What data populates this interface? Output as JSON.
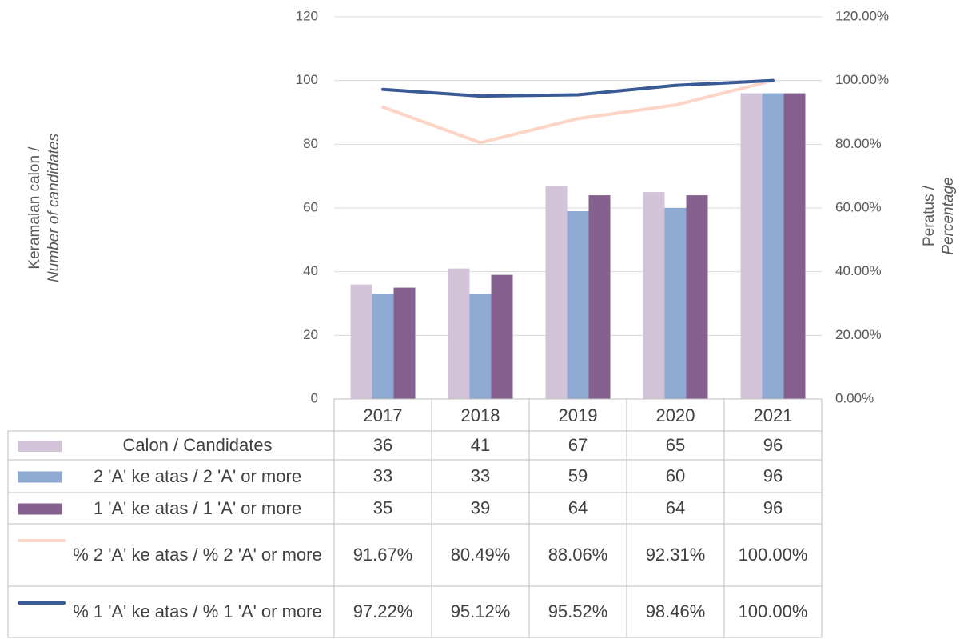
{
  "chart_data": {
    "type": "bar",
    "categories": [
      "2017",
      "2018",
      "2019",
      "2020",
      "2021"
    ],
    "ylabel": [
      "Keramaian calon /",
      "Number of candidates"
    ],
    "y2label": [
      "Peratus /",
      "Percentage"
    ],
    "ylim": [
      0,
      120
    ],
    "yticks": [
      0,
      20,
      40,
      60,
      80,
      100,
      120
    ],
    "y2lim": [
      0,
      120
    ],
    "y2ticks": [
      {
        "value": 0,
        "label": "0.00%"
      },
      {
        "value": 20,
        "label": "20.00%"
      },
      {
        "value": 40,
        "label": "40.00%"
      },
      {
        "value": 60,
        "label": "60.00%"
      },
      {
        "value": 80,
        "label": "80.00%"
      },
      {
        "value": 100,
        "label": "100.00%"
      },
      {
        "value": 120,
        "label": "120.00%"
      }
    ],
    "grid": true,
    "data_table": true,
    "series": [
      {
        "name": "Calon / Candidates",
        "type": "bar",
        "color": "#d3c3d9",
        "values": [
          36,
          41,
          67,
          65,
          96
        ]
      },
      {
        "name": "2 'A' ke atas / 2 'A' or more",
        "type": "bar",
        "color": "#8faad2",
        "values": [
          33,
          33,
          59,
          60,
          96
        ]
      },
      {
        "name": "1 'A' ke atas / 1 'A' or more",
        "type": "bar",
        "color": "#86608e",
        "values": [
          35,
          39,
          64,
          64,
          96
        ]
      },
      {
        "name": "% 2 'A' ke atas / % 2 'A' or more",
        "type": "line",
        "axis": "y2",
        "color": "#fcd5c6",
        "values": [
          91.67,
          80.49,
          88.06,
          92.31,
          100.0
        ],
        "value_labels": [
          "91.67%",
          "80.49%",
          "88.06%",
          "92.31%",
          "100.00%"
        ]
      },
      {
        "name": "% 1 'A' ke atas / % 1 'A' or more",
        "type": "line",
        "axis": "y2",
        "color": "#3a5a95",
        "values": [
          97.22,
          95.12,
          95.52,
          98.46,
          100.0
        ],
        "value_labels": [
          "97.22%",
          "95.12%",
          "95.52%",
          "98.46%",
          "100.00%"
        ]
      }
    ]
  }
}
